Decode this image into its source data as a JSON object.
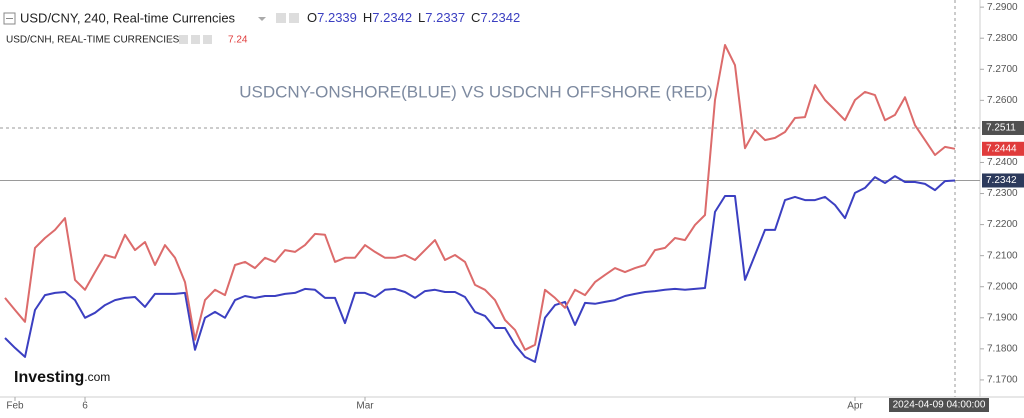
{
  "chart_data": {
    "type": "line",
    "annotation": "USDCNY-ONSHORE(BLUE) VS USDCNH OFFSHORE (RED)",
    "ohlc": [
      {
        "label": "O",
        "value": 7.2339
      },
      {
        "label": "H",
        "value": 7.2342
      },
      {
        "label": "L",
        "value": 7.2337
      },
      {
        "label": "C",
        "value": 7.2342
      }
    ],
    "secondary_last_value": 7.24,
    "logo": {
      "name": "Investing",
      "suffix": ".com"
    },
    "crosshair": {
      "price": 7.2511,
      "time": "2024-04-09 04:00:00"
    },
    "ylim": [
      7.1645,
      7.2923
    ],
    "yticks": [
      {
        "value": 7.17,
        "label": "7.1700"
      },
      {
        "value": 7.18,
        "label": "7.1800"
      },
      {
        "value": 7.19,
        "label": "7.1900"
      },
      {
        "value": 7.2,
        "label": "7.2000"
      },
      {
        "value": 7.21,
        "label": "7.2100"
      },
      {
        "value": 7.22,
        "label": "7.2200"
      },
      {
        "value": 7.23,
        "label": "7.2300"
      },
      {
        "value": 7.24,
        "label": "7.2400"
      },
      {
        "value": 7.26,
        "label": "7.2600"
      },
      {
        "value": 7.27,
        "label": "7.2700"
      },
      {
        "value": 7.28,
        "label": "7.2800"
      },
      {
        "value": 7.29,
        "label": "7.2900"
      }
    ],
    "categories": [
      null,
      "Feb",
      null,
      null,
      null,
      null,
      null,
      null,
      "6",
      null,
      null,
      null,
      null,
      null,
      null,
      null,
      null,
      null,
      null,
      null,
      null,
      null,
      null,
      null,
      null,
      null,
      null,
      null,
      null,
      null,
      null,
      null,
      null,
      null,
      null,
      null,
      "Mar",
      null,
      null,
      null,
      null,
      null,
      null,
      null,
      null,
      null,
      null,
      null,
      null,
      null,
      null,
      null,
      null,
      null,
      null,
      null,
      null,
      null,
      null,
      null,
      null,
      null,
      null,
      null,
      null,
      null,
      null,
      null,
      null,
      null,
      null,
      null,
      null,
      null,
      null,
      null,
      null,
      null,
      null,
      null,
      null,
      null,
      null,
      null,
      null,
      "Apr",
      null,
      null,
      null,
      null,
      null,
      null,
      null,
      null,
      null,
      null
    ],
    "series": [
      {
        "name": "USD/CNY, 240, Real-time Currencies",
        "color": "#3b3fc1",
        "values": [
          7.1835,
          7.1803,
          7.1774,
          7.1925,
          7.1973,
          7.198,
          7.1983,
          7.1957,
          7.19,
          7.1916,
          7.1941,
          7.1957,
          7.1964,
          7.1967,
          7.1935,
          7.1977,
          7.1977,
          7.1977,
          7.198,
          7.1797,
          7.19,
          7.1919,
          7.19,
          7.1957,
          7.197,
          7.1964,
          7.197,
          7.197,
          7.1977,
          7.198,
          7.1993,
          7.199,
          7.1964,
          7.1964,
          7.1883,
          7.198,
          7.198,
          7.1967,
          7.199,
          7.1993,
          7.1983,
          7.1964,
          7.1986,
          7.199,
          7.1983,
          7.1983,
          7.1967,
          7.1919,
          7.1906,
          7.1867,
          7.1867,
          7.1813,
          7.1774,
          7.1758,
          7.19,
          7.1941,
          7.1951,
          7.1877,
          7.1948,
          7.1945,
          7.1951,
          7.1957,
          7.197,
          7.1977,
          7.1983,
          7.1986,
          7.199,
          7.1993,
          7.199,
          7.1993,
          7.1996,
          7.2241,
          7.2292,
          7.2292,
          7.2022,
          7.2102,
          7.2183,
          7.2183,
          7.2279,
          7.2289,
          7.2279,
          7.2279,
          7.2289,
          7.2263,
          7.2221,
          7.2302,
          7.2318,
          7.2353,
          7.2334,
          7.2356,
          7.2337,
          7.2337,
          7.2331,
          7.2311,
          7.234,
          7.2342
        ]
      },
      {
        "name": "USD/CNH, REAL-TIME CURRENCIES",
        "color": "#dc6b6b",
        "values": [
          7.1964,
          7.1925,
          7.1887,
          7.2125,
          7.2157,
          7.2183,
          7.2221,
          7.2022,
          7.199,
          7.2047,
          7.2102,
          7.2093,
          7.2167,
          7.2118,
          7.2144,
          7.207,
          7.2134,
          7.2093,
          7.2015,
          7.1829,
          7.1957,
          7.199,
          7.1973,
          7.207,
          7.208,
          7.206,
          7.2093,
          7.208,
          7.2118,
          7.2112,
          7.2134,
          7.217,
          7.2167,
          7.208,
          7.2093,
          7.2093,
          7.2134,
          7.2112,
          7.2093,
          7.2093,
          7.2102,
          7.2086,
          7.2118,
          7.215,
          7.2086,
          7.2102,
          7.208,
          7.2006,
          7.199,
          7.1957,
          7.1893,
          7.1861,
          7.1797,
          7.1813,
          7.199,
          7.1964,
          7.1932,
          7.199,
          7.1973,
          7.2015,
          7.2038,
          7.206,
          7.2047,
          7.206,
          7.207,
          7.2118,
          7.2125,
          7.2157,
          7.215,
          7.2199,
          7.2231,
          7.2601,
          7.2778,
          7.2713,
          7.2446,
          7.2504,
          7.2472,
          7.2479,
          7.2498,
          7.2543,
          7.2546,
          7.2649,
          7.2601,
          7.2569,
          7.2536,
          7.2601,
          7.2627,
          7.2617,
          7.2536,
          7.2553,
          7.261,
          7.252,
          7.2472,
          7.2424,
          7.245,
          7.2444
        ]
      }
    ]
  }
}
